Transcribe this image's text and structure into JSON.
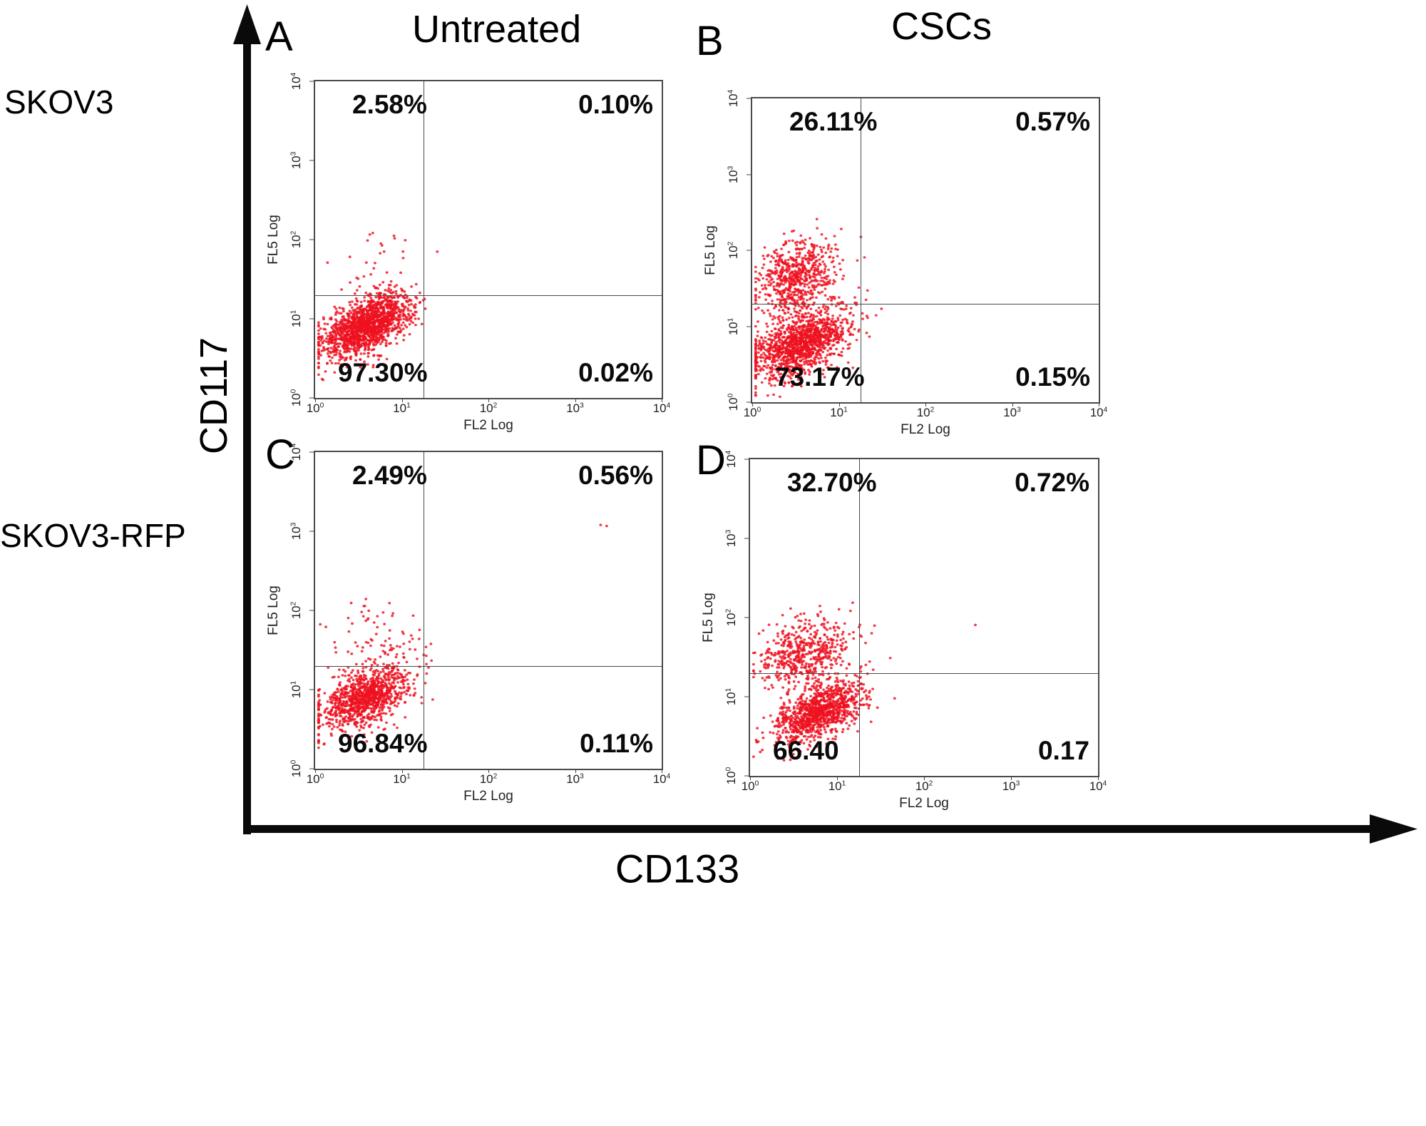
{
  "chart_data": {
    "type": "scatter",
    "subtype": "flow_cytometry_quadrant_plots",
    "layout": "2x2_panels",
    "outer_axes": {
      "x_label": "CD133",
      "y_label": "CD117"
    },
    "column_headers": [
      "Untreated",
      "CSCs"
    ],
    "row_headers": [
      "SKOV3",
      "SKOV3-RFP"
    ],
    "panel_axis": {
      "x_label": "FL2 Log",
      "y_label": "FL5 Log",
      "scale": "log10",
      "tick_exponents": [
        0,
        1,
        2,
        3,
        4
      ],
      "range": [
        1,
        10000
      ]
    },
    "gates": {
      "x_log10": 1.25,
      "y_log10": 1.3
    },
    "style": {
      "point_color": "#ee1120",
      "gate_color": "#4a4a4a",
      "border_color": "#4a4a4a"
    },
    "panels": [
      {
        "label": "A",
        "row": "SKOV3",
        "column": "Untreated",
        "quadrants": {
          "upper_left": "2.58%",
          "upper_right": "0.10%",
          "lower_left": "97.30%",
          "lower_right": "0.02%"
        },
        "clusters": [
          {
            "n": 1500,
            "cx": 0.6,
            "cy": 0.92,
            "sx": 0.26,
            "sy": 0.2,
            "rho": 0.55
          },
          {
            "n": 40,
            "cx": 0.72,
            "cy": 1.45,
            "sx": 0.22,
            "sy": 0.28,
            "rho": 0
          },
          {
            "n": 6,
            "cx": 0.78,
            "cy": 1.98,
            "sx": 0.15,
            "sy": 0.12,
            "rho": 0
          }
        ]
      },
      {
        "label": "B",
        "row": "SKOV3",
        "column": "CSCs",
        "quadrants": {
          "upper_left": "26.11%",
          "upper_right": "0.57%",
          "lower_left": "73.17%",
          "lower_right": "0.15%"
        },
        "clusters": [
          {
            "n": 1250,
            "cx": 0.55,
            "cy": 0.75,
            "sx": 0.28,
            "sy": 0.22,
            "rho": 0.5
          },
          {
            "n": 620,
            "cx": 0.5,
            "cy": 1.65,
            "sx": 0.22,
            "sy": 0.25,
            "rho": 0.3
          },
          {
            "n": 120,
            "cx": 0.65,
            "cy": 1.2,
            "sx": 0.3,
            "sy": 0.25,
            "rho": 0
          }
        ]
      },
      {
        "label": "C",
        "row": "SKOV3-RFP",
        "column": "Untreated",
        "quadrants": {
          "upper_left": "2.49%",
          "upper_right": "0.56%",
          "lower_left": "96.84%",
          "lower_right": "0.11%"
        },
        "clusters": [
          {
            "n": 1050,
            "cx": 0.58,
            "cy": 0.9,
            "sx": 0.26,
            "sy": 0.2,
            "rho": 0.5
          },
          {
            "n": 85,
            "cx": 0.75,
            "cy": 1.58,
            "sx": 0.33,
            "sy": 0.3,
            "rho": 0
          },
          {
            "n": 2,
            "cx": 3.3,
            "cy": 3.15,
            "sx": 0.08,
            "sy": 0.08,
            "rho": 0
          }
        ]
      },
      {
        "label": "D",
        "row": "SKOV3-RFP",
        "column": "CSCs",
        "quadrants": {
          "upper_left": "32.70%",
          "upper_right": "0.72%",
          "lower_left": "66.40",
          "lower_right": "0.17"
        },
        "clusters": [
          {
            "n": 1050,
            "cx": 0.8,
            "cy": 0.8,
            "sx": 0.25,
            "sy": 0.2,
            "rho": 0.55
          },
          {
            "n": 520,
            "cx": 0.62,
            "cy": 1.55,
            "sx": 0.25,
            "sy": 0.22,
            "rho": 0.3
          },
          {
            "n": 1,
            "cx": 2.58,
            "cy": 1.9,
            "sx": 0.01,
            "sy": 0.01,
            "rho": 0
          }
        ]
      }
    ]
  }
}
